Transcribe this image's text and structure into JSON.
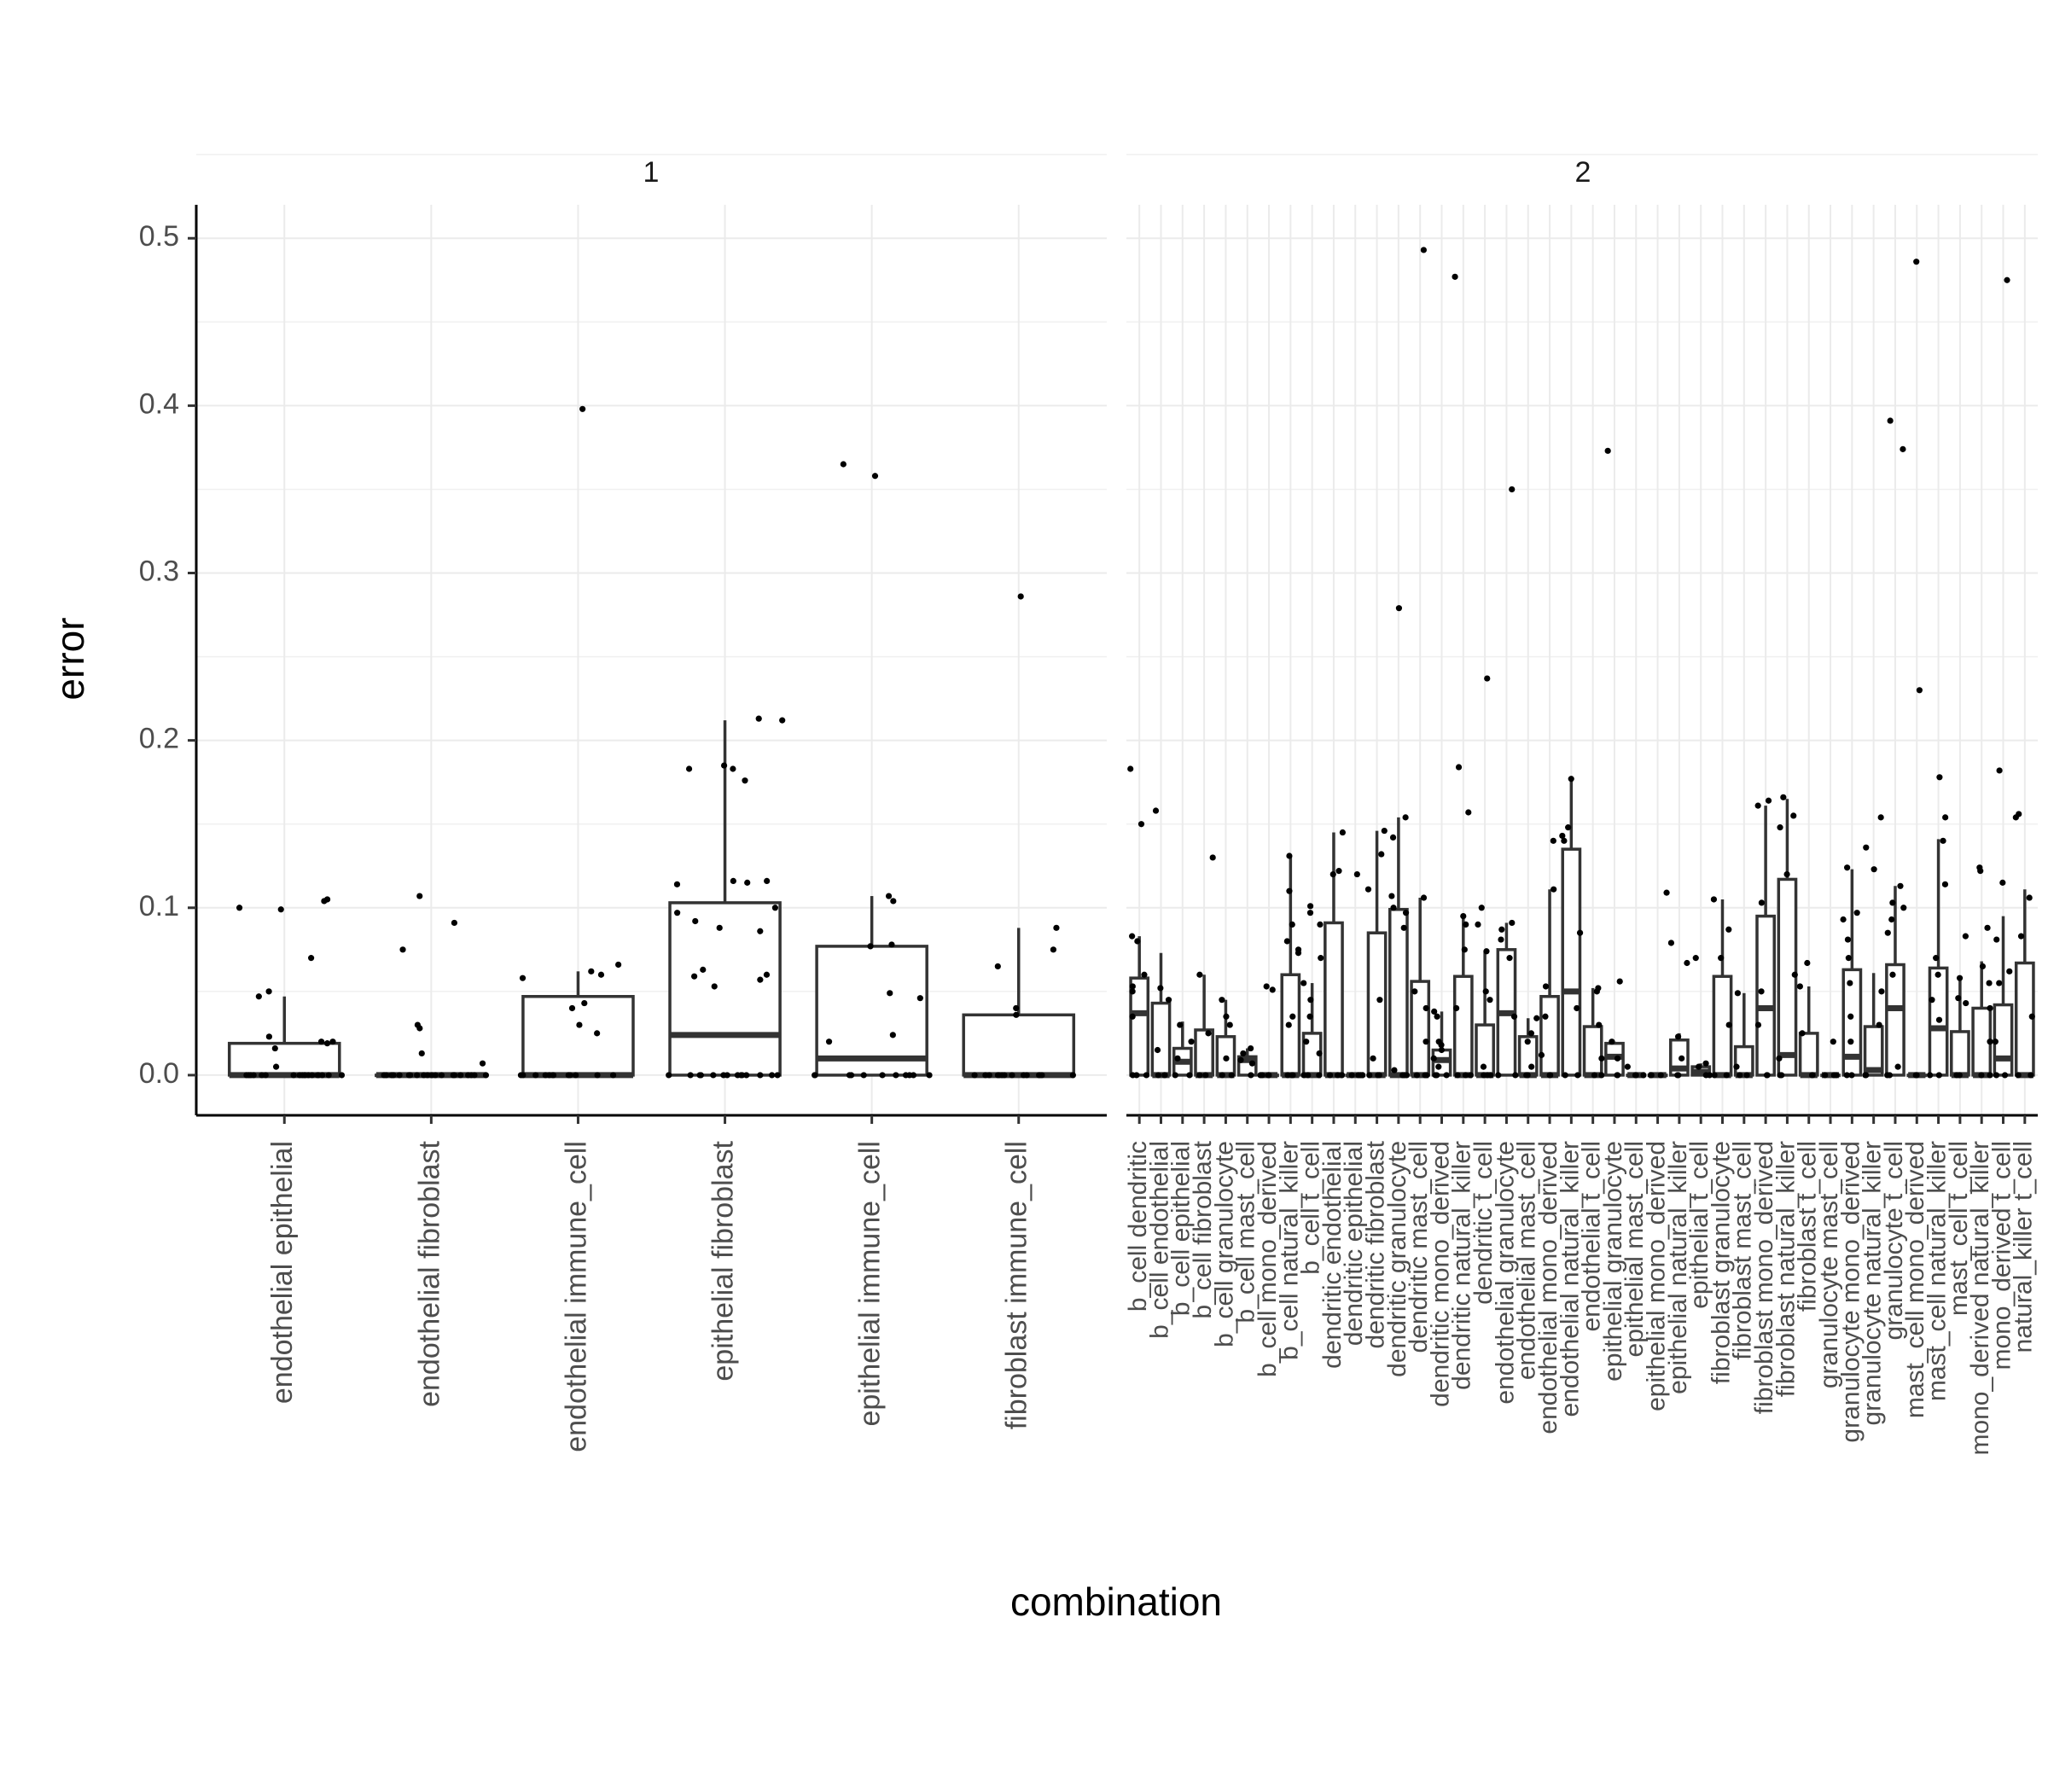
{
  "chart_data": {
    "type": "box",
    "xlabel": "combination",
    "ylabel": "error",
    "ylim": [
      -0.024,
      0.52
    ],
    "yticks": [
      0.0,
      0.1,
      0.2,
      0.3,
      0.4,
      0.5
    ],
    "ytick_labels": [
      "0.0",
      "0.1",
      "0.2",
      "0.3",
      "0.4",
      "0.5"
    ],
    "grid": true,
    "panels": [
      {
        "strip": "1",
        "categories": [
          "endothelial epithelial",
          "endothelial fibroblast",
          "endothelial immune_cell",
          "epithelial fibroblast",
          "epithelial immune_cell",
          "fibroblast immune_cell"
        ],
        "boxes": [
          {
            "q1": 0,
            "median": 0,
            "q3": 0.019,
            "whisker_low": 0,
            "whisker_high": 0.047
          },
          {
            "q1": 0,
            "median": 0,
            "q3": 0,
            "whisker_low": 0,
            "whisker_high": 0
          },
          {
            "q1": 0,
            "median": 0,
            "q3": 0.047,
            "whisker_low": 0,
            "whisker_high": 0.062
          },
          {
            "q1": 0,
            "median": 0.024,
            "q3": 0.103,
            "whisker_low": 0,
            "whisker_high": 0.212
          },
          {
            "q1": 0,
            "median": 0.01,
            "q3": 0.077,
            "whisker_low": 0,
            "whisker_high": 0.107
          },
          {
            "q1": 0,
            "median": 0,
            "q3": 0.036,
            "whisker_low": 0,
            "whisker_high": 0.088
          }
        ],
        "points": [
          [
            0,
            0,
            0,
            0,
            0,
            0,
            0,
            0,
            0,
            0,
            0,
            0,
            0,
            0,
            0,
            0,
            0,
            0,
            0.105,
            0.104,
            0.1,
            0.099,
            0.07,
            0.05,
            0.047,
            0.023,
            0.02,
            0.019,
            0.016,
            0.005,
            0.02
          ],
          [
            0,
            0,
            0,
            0,
            0,
            0,
            0,
            0,
            0,
            0,
            0,
            0,
            0,
            0,
            0,
            0,
            0,
            0,
            0,
            0,
            0.107,
            0.091,
            0.075,
            0.03,
            0.028,
            0.013,
            0.007
          ],
          [
            0,
            0,
            0,
            0,
            0,
            0,
            0,
            0,
            0,
            0,
            0,
            0,
            0.398,
            0.066,
            0.062,
            0.06,
            0.058,
            0.043,
            0.04,
            0.03,
            0.025
          ],
          [
            0,
            0,
            0,
            0,
            0,
            0,
            0,
            0,
            0,
            0,
            0,
            0,
            0,
            0,
            0.213,
            0.212,
            0.185,
            0.183,
            0.183,
            0.176,
            0.116,
            0.116,
            0.115,
            0.114,
            0.1,
            0.097,
            0.092,
            0.088,
            0.086,
            0.063,
            0.06,
            0.059,
            0.057,
            0.053
          ],
          [
            0,
            0,
            0,
            0,
            0,
            0,
            0,
            0,
            0,
            0,
            0,
            0.365,
            0.358,
            0.107,
            0.104,
            0.078,
            0.077,
            0.049,
            0.046,
            0.024,
            0.02
          ],
          [
            0,
            0,
            0,
            0,
            0,
            0,
            0,
            0,
            0,
            0,
            0,
            0,
            0,
            0,
            0.286,
            0.088,
            0.075,
            0.065,
            0.04,
            0.036
          ]
        ]
      },
      {
        "strip": "2",
        "categories": [
          "b_cell dendritic",
          "b_cell endothelial",
          "b_cell epithelial",
          "b_cell fibroblast",
          "b_cell granulocyte",
          "b_cell mast_cell",
          "b_cell mono_derived",
          "b_cell natural_killer",
          "b_cell t_cell",
          "dendritic endothelial",
          "dendritic epithelial",
          "dendritic fibroblast",
          "dendritic granulocyte",
          "dendritic mast_cell",
          "dendritic mono_derived",
          "dendritic natural_killer",
          "dendritic t_cell",
          "endothelial granulocyte",
          "endothelial mast_cell",
          "endothelial mono_derived",
          "endothelial natural_killer",
          "endothelial t_cell",
          "epithelial granulocyte",
          "epithelial mast_cell",
          "epithelial mono_derived",
          "epithelial natural_killer",
          "epithelial t_cell",
          "fibroblast granulocyte",
          "fibroblast mast_cell",
          "fibroblast mono_derived",
          "fibroblast natural_killer",
          "fibroblast t_cell",
          "granulocyte mast_cell",
          "granulocyte mono_derived",
          "granulocyte natural_killer",
          "granulocyte t_cell",
          "mast_cell mono_derived",
          "mast_cell natural_killer",
          "mast_cell t_cell",
          "mono_derived natural_killer",
          "mono_derived t_cell",
          "natural_killer t_cell"
        ],
        "boxes": [
          {
            "q1": 0,
            "median": 0.037,
            "q3": 0.058,
            "whisker_low": 0,
            "whisker_high": 0.083
          },
          {
            "q1": 0,
            "median": 0,
            "q3": 0.043,
            "whisker_low": 0,
            "whisker_high": 0.073
          },
          {
            "q1": 0,
            "median": 0.008,
            "q3": 0.016,
            "whisker_low": 0,
            "whisker_high": 0.032
          },
          {
            "q1": 0,
            "median": 0,
            "q3": 0.027,
            "whisker_low": 0,
            "whisker_high": 0.06
          },
          {
            "q1": 0,
            "median": 0,
            "q3": 0.023,
            "whisker_low": 0,
            "whisker_high": 0.045
          },
          {
            "q1": 0,
            "median": 0.009,
            "q3": 0.011,
            "whisker_low": 0,
            "whisker_high": 0.016
          },
          {
            "q1": 0,
            "median": 0,
            "q3": 0,
            "whisker_low": 0,
            "whisker_high": 0
          },
          {
            "q1": 0,
            "median": 0,
            "q3": 0.06,
            "whisker_low": 0,
            "whisker_high": 0.131
          },
          {
            "q1": 0,
            "median": 0,
            "q3": 0.025,
            "whisker_low": 0,
            "whisker_high": 0.055
          },
          {
            "q1": 0,
            "median": 0,
            "q3": 0.091,
            "whisker_low": 0,
            "whisker_high": 0.145
          },
          {
            "q1": 0,
            "median": 0,
            "q3": 0,
            "whisker_low": 0,
            "whisker_high": 0
          },
          {
            "q1": 0,
            "median": 0,
            "q3": 0.085,
            "whisker_low": 0,
            "whisker_high": 0.146
          },
          {
            "q1": 0,
            "median": 0,
            "q3": 0.099,
            "whisker_low": 0,
            "whisker_high": 0.154
          },
          {
            "q1": 0,
            "median": 0,
            "q3": 0.056,
            "whisker_low": 0,
            "whisker_high": 0.106
          },
          {
            "q1": 0,
            "median": 0.009,
            "q3": 0.015,
            "whisker_low": 0,
            "whisker_high": 0.038
          },
          {
            "q1": 0,
            "median": 0,
            "q3": 0.059,
            "whisker_low": 0,
            "whisker_high": 0.095
          },
          {
            "q1": 0,
            "median": 0,
            "q3": 0.03,
            "whisker_low": 0,
            "whisker_high": 0.074
          },
          {
            "q1": 0,
            "median": 0.037,
            "q3": 0.075,
            "whisker_low": 0,
            "whisker_high": 0.091
          },
          {
            "q1": 0,
            "median": 0,
            "q3": 0.023,
            "whisker_low": 0,
            "whisker_high": 0.034
          },
          {
            "q1": 0,
            "median": 0,
            "q3": 0.047,
            "whisker_low": 0,
            "whisker_high": 0.111
          },
          {
            "q1": 0,
            "median": 0.05,
            "q3": 0.135,
            "whisker_low": 0,
            "whisker_high": 0.176
          },
          {
            "q1": 0,
            "median": 0,
            "q3": 0.029,
            "whisker_low": 0,
            "whisker_high": 0.052
          },
          {
            "q1": 0,
            "median": 0.011,
            "q3": 0.019,
            "whisker_low": 0,
            "whisker_high": 0.02
          },
          {
            "q1": 0,
            "median": 0,
            "q3": 0,
            "whisker_low": 0,
            "whisker_high": 0
          },
          {
            "q1": 0,
            "median": 0,
            "q3": 0,
            "whisker_low": 0,
            "whisker_high": 0
          },
          {
            "q1": 0,
            "median": 0.004,
            "q3": 0.021,
            "whisker_low": 0,
            "whisker_high": 0.025
          },
          {
            "q1": 0,
            "median": 0.002,
            "q3": 0.005,
            "whisker_low": 0,
            "whisker_high": 0.007
          },
          {
            "q1": 0,
            "median": 0,
            "q3": 0.059,
            "whisker_low": 0,
            "whisker_high": 0.105
          },
          {
            "q1": 0,
            "median": 0,
            "q3": 0.017,
            "whisker_low": 0,
            "whisker_high": 0.049
          },
          {
            "q1": 0,
            "median": 0.04,
            "q3": 0.095,
            "whisker_low": 0,
            "whisker_high": 0.161
          },
          {
            "q1": 0,
            "median": 0.012,
            "q3": 0.117,
            "whisker_low": 0,
            "whisker_high": 0.165
          },
          {
            "q1": 0,
            "median": 0,
            "q3": 0.025,
            "whisker_low": 0,
            "whisker_high": 0.053
          },
          {
            "q1": 0,
            "median": 0,
            "q3": 0,
            "whisker_low": 0,
            "whisker_high": 0
          },
          {
            "q1": 0,
            "median": 0.011,
            "q3": 0.063,
            "whisker_low": 0,
            "whisker_high": 0.123
          },
          {
            "q1": 0,
            "median": 0.003,
            "q3": 0.029,
            "whisker_low": 0,
            "whisker_high": 0.061
          },
          {
            "q1": 0,
            "median": 0.04,
            "q3": 0.066,
            "whisker_low": 0,
            "whisker_high": 0.113
          },
          {
            "q1": 0,
            "median": 0,
            "q3": 0,
            "whisker_low": 0,
            "whisker_high": 0
          },
          {
            "q1": 0,
            "median": 0.028,
            "q3": 0.064,
            "whisker_low": 0,
            "whisker_high": 0.141
          },
          {
            "q1": 0,
            "median": 0,
            "q3": 0.026,
            "whisker_low": 0,
            "whisker_high": 0.058
          },
          {
            "q1": 0,
            "median": 0,
            "q3": 0.04,
            "whisker_low": 0,
            "whisker_high": 0.068
          },
          {
            "q1": 0,
            "median": 0.01,
            "q3": 0.042,
            "whisker_low": 0,
            "whisker_high": 0.095
          },
          {
            "q1": 0,
            "median": 0,
            "q3": 0.067,
            "whisker_low": 0,
            "whisker_high": 0.111
          }
        ],
        "points": [
          [
            0,
            0,
            0,
            0.183,
            0.15,
            0.08,
            0.083,
            0.053,
            0.05,
            0.035,
            0.06
          ],
          [
            0,
            0,
            0,
            0.158,
            0.052,
            0.045,
            0.015
          ],
          [
            0,
            0,
            0.03,
            0.02,
            0.01
          ],
          [
            0,
            0,
            0.13,
            0.06,
            0.025
          ],
          [
            0,
            0,
            0.045,
            0.035,
            0.03,
            0.01
          ],
          [
            0,
            0.016,
            0.013,
            0.009,
            0.007
          ],
          [
            0,
            0,
            0,
            0,
            0.053,
            0.051
          ],
          [
            0,
            0,
            0,
            0.131,
            0.11,
            0.09,
            0.08,
            0.075,
            0.073,
            0.035,
            0.03
          ],
          [
            0,
            0,
            0,
            0.101,
            0.097,
            0.09,
            0.07,
            0.055,
            0.045,
            0.035,
            0.02,
            0.013
          ],
          [
            0,
            0,
            0,
            0.145,
            0.122,
            0.12
          ],
          [
            0,
            0,
            0,
            0,
            0.12
          ],
          [
            0,
            0,
            0,
            0.146,
            0.132,
            0.111,
            0.045,
            0.01
          ],
          [
            0,
            0,
            0,
            0.279,
            0.154,
            0.142,
            0.107,
            0.1,
            0.097,
            0.088,
            0.003
          ],
          [
            0,
            0,
            0,
            0.493,
            0.106,
            0.05,
            0.04,
            0.02
          ],
          [
            0,
            0,
            0,
            0.038,
            0.035,
            0.02,
            0.018,
            0.015,
            0.01,
            0.005
          ],
          [
            0,
            0,
            0,
            0.477,
            0.184,
            0.157,
            0.095,
            0.09,
            0.075,
            0.04
          ],
          [
            0,
            0,
            0,
            0.237,
            0.1,
            0.09,
            0.074,
            0.05,
            0.045,
            0.005
          ],
          [
            0,
            0,
            0.35,
            0.091,
            0.087,
            0.081,
            0.07,
            0.035
          ],
          [
            0,
            0,
            0.034,
            0.025,
            0.02,
            0.005
          ],
          [
            0,
            0,
            0.14,
            0.111,
            0.053,
            0.035,
            0.012
          ],
          [
            0,
            0,
            0.177,
            0.148,
            0.143,
            0.14,
            0.085,
            0.04
          ],
          [
            0,
            0,
            0.052,
            0.05,
            0.03,
            0.01
          ],
          [
            0,
            0,
            0.373,
            0.056,
            0.02,
            0.01
          ],
          [
            0,
            0,
            0,
            0.005
          ],
          [
            0,
            0,
            0,
            0.109
          ],
          [
            0,
            0,
            0.079,
            0.067,
            0.023,
            0.01
          ],
          [
            0,
            0,
            0.007,
            0.005,
            0.07
          ],
          [
            0,
            0,
            0.105,
            0.087,
            0.07,
            0.03
          ],
          [
            0,
            0,
            0.049,
            0.005
          ],
          [
            0,
            0,
            0.164,
            0.161,
            0.103,
            0.05,
            0.03
          ],
          [
            0,
            0,
            0.166,
            0.155,
            0.148,
            0.12,
            0.06,
            0.01
          ],
          [
            0,
            0,
            0.067,
            0.053,
            0.025
          ],
          [
            0,
            0,
            0,
            0.02
          ],
          [
            0,
            0,
            0.124,
            0.097,
            0.093,
            0.081,
            0.07,
            0.055,
            0.035,
            0.02
          ],
          [
            0,
            0,
            0.154,
            0.136,
            0.123,
            0.05,
            0.03
          ],
          [
            0,
            0,
            0.391,
            0.374,
            0.113,
            0.103,
            0.1,
            0.093,
            0.085,
            0.06,
            0.005
          ],
          [
            0,
            0,
            0.486,
            0.23
          ],
          [
            0,
            0,
            0.178,
            0.154,
            0.14,
            0.114,
            0.07,
            0.06,
            0.045,
            0.033
          ],
          [
            0,
            0,
            0.083,
            0.058,
            0.046,
            0.043
          ],
          [
            0,
            0,
            0.124,
            0.122,
            0.088,
            0.065,
            0.055,
            0.04,
            0.02
          ],
          [
            0,
            0,
            0.475,
            0.182,
            0.115,
            0.081,
            0.062,
            0.055,
            0.02
          ],
          [
            0,
            0,
            0.156,
            0.154,
            0.106,
            0.083,
            0.035
          ]
        ]
      }
    ]
  }
}
